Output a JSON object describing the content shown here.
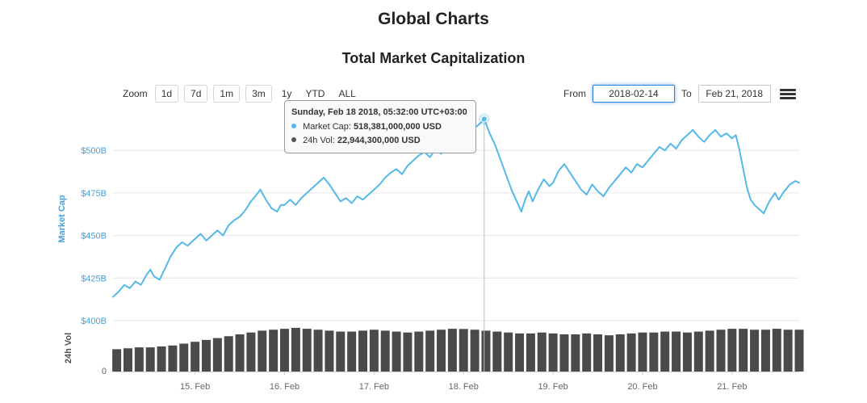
{
  "page": {
    "title": "Global Charts"
  },
  "toolbar": {
    "zoom_label": "Zoom",
    "zoom_buttons": [
      "1d",
      "7d",
      "1m",
      "3m",
      "1y",
      "YTD",
      "ALL"
    ],
    "from_label": "From",
    "from_value": "2018-02-14",
    "to_label": "To",
    "to_value": "Feb 21, 2018"
  },
  "tooltip": {
    "header": "Sunday, Feb 18 2018, 05:32:00 UTC+03:00",
    "rows": [
      {
        "label": "Market Cap:",
        "value": "518,381,000,000 USD",
        "color": "#54b9e8"
      },
      {
        "label": "24h Vol:",
        "value": "22,944,300,000 USD",
        "color": "#555555"
      }
    ]
  },
  "chart_data": {
    "type": "line",
    "title": "Total Market Capitalization",
    "x_unit": "hours since 2018-02-14 00:00",
    "x_range": [
      2,
      186
    ],
    "x_ticks": [
      {
        "t": 24,
        "label": "15. Feb"
      },
      {
        "t": 48,
        "label": "16. Feb"
      },
      {
        "t": 72,
        "label": "17. Feb"
      },
      {
        "t": 96,
        "label": "18. Feb"
      },
      {
        "t": 120,
        "label": "19. Feb"
      },
      {
        "t": 144,
        "label": "20. Feb"
      },
      {
        "t": 168,
        "label": "21. Feb"
      }
    ],
    "crosshair": {
      "t": 101.53,
      "value": 518.381
    },
    "market_cap": {
      "name": "Market Cap",
      "axis_title": "Market Cap",
      "unit": "billion USD",
      "color": "#54b9e8",
      "ylim": [
        395,
        525
      ],
      "axis_ticks": [
        {
          "v": 400,
          "label": "$400B"
        },
        {
          "v": 425,
          "label": "$425B"
        },
        {
          "v": 450,
          "label": "$450B"
        },
        {
          "v": 475,
          "label": "$475B"
        },
        {
          "v": 500,
          "label": "$500B"
        }
      ],
      "points": [
        [
          2,
          414
        ],
        [
          3.5,
          417
        ],
        [
          5,
          421
        ],
        [
          6.5,
          419
        ],
        [
          8,
          423
        ],
        [
          9.5,
          421
        ],
        [
          11,
          427
        ],
        [
          12,
          430
        ],
        [
          13,
          426
        ],
        [
          14.5,
          424
        ],
        [
          16,
          431
        ],
        [
          17.5,
          438
        ],
        [
          19,
          443
        ],
        [
          20.5,
          446
        ],
        [
          22,
          444
        ],
        [
          24,
          448
        ],
        [
          25.5,
          451
        ],
        [
          27,
          447
        ],
        [
          28.5,
          450
        ],
        [
          30,
          453
        ],
        [
          31.5,
          450
        ],
        [
          33,
          456
        ],
        [
          34.5,
          459
        ],
        [
          36,
          461
        ],
        [
          37.5,
          465
        ],
        [
          39,
          470
        ],
        [
          40.5,
          474
        ],
        [
          41.5,
          477
        ],
        [
          43,
          471
        ],
        [
          44.5,
          466
        ],
        [
          46,
          464
        ],
        [
          47,
          468
        ],
        [
          48,
          468
        ],
        [
          49.5,
          471
        ],
        [
          51,
          468
        ],
        [
          52.5,
          472
        ],
        [
          54,
          475
        ],
        [
          55.5,
          478
        ],
        [
          57,
          481
        ],
        [
          58.5,
          484
        ],
        [
          60,
          480
        ],
        [
          61.5,
          475
        ],
        [
          63,
          470
        ],
        [
          64.5,
          472
        ],
        [
          66,
          469
        ],
        [
          67.5,
          473
        ],
        [
          69,
          471
        ],
        [
          70.5,
          474
        ],
        [
          72,
          477
        ],
        [
          73.5,
          480
        ],
        [
          75,
          484
        ],
        [
          76.5,
          487
        ],
        [
          78,
          489
        ],
        [
          79.5,
          486
        ],
        [
          81,
          491
        ],
        [
          82.5,
          494
        ],
        [
          84,
          497
        ],
        [
          85.5,
          499
        ],
        [
          87,
          496
        ],
        [
          88.5,
          501
        ],
        [
          90,
          498
        ],
        [
          91.5,
          503
        ],
        [
          93,
          506
        ],
        [
          94.5,
          502
        ],
        [
          96,
          506
        ],
        [
          97.5,
          510
        ],
        [
          99,
          513
        ],
        [
          100.5,
          516
        ],
        [
          101.53,
          518.381
        ],
        [
          103,
          510
        ],
        [
          104.5,
          503
        ],
        [
          106,
          494
        ],
        [
          107.5,
          485
        ],
        [
          109,
          476
        ],
        [
          110.5,
          469
        ],
        [
          111.5,
          464
        ],
        [
          112.5,
          471
        ],
        [
          113.5,
          476
        ],
        [
          114.5,
          470
        ],
        [
          116,
          477
        ],
        [
          117.5,
          483
        ],
        [
          119,
          479
        ],
        [
          120,
          481
        ],
        [
          121.5,
          488
        ],
        [
          123,
          492
        ],
        [
          124.5,
          487
        ],
        [
          126,
          482
        ],
        [
          127.5,
          477
        ],
        [
          129,
          474
        ],
        [
          130.5,
          480
        ],
        [
          132,
          476
        ],
        [
          133.5,
          473
        ],
        [
          135,
          478
        ],
        [
          136.5,
          482
        ],
        [
          138,
          486
        ],
        [
          139.5,
          490
        ],
        [
          141,
          487
        ],
        [
          142.5,
          492
        ],
        [
          144,
          490
        ],
        [
          145.5,
          494
        ],
        [
          147,
          498
        ],
        [
          148.5,
          502
        ],
        [
          150,
          500
        ],
        [
          151.5,
          504
        ],
        [
          153,
          501
        ],
        [
          154.5,
          506
        ],
        [
          156,
          509
        ],
        [
          157.5,
          512
        ],
        [
          159,
          508
        ],
        [
          160.5,
          505
        ],
        [
          162,
          509
        ],
        [
          163.5,
          512
        ],
        [
          165,
          508
        ],
        [
          166.5,
          510
        ],
        [
          168,
          507
        ],
        [
          169,
          509
        ],
        [
          170,
          500
        ],
        [
          171,
          489
        ],
        [
          172,
          478
        ],
        [
          173,
          471
        ],
        [
          174,
          468
        ],
        [
          175.5,
          465
        ],
        [
          176.5,
          463
        ],
        [
          178,
          470
        ],
        [
          179.5,
          475
        ],
        [
          180.5,
          471
        ],
        [
          182,
          476
        ],
        [
          183.5,
          480
        ],
        [
          185,
          482
        ],
        [
          186,
          481
        ]
      ]
    },
    "volume": {
      "name": "24h Vol",
      "axis_title": "24h Vol",
      "unit": "billion USD",
      "color": "#4a4a4a",
      "ylim": [
        0,
        25
      ],
      "axis_ticks": [
        {
          "v": 0,
          "label": "0"
        }
      ],
      "t_start": 3,
      "t_step": 3,
      "values": [
        12,
        12.5,
        13,
        13,
        13.5,
        14,
        15,
        16,
        17,
        18,
        19,
        20,
        21,
        22,
        22.5,
        23,
        23.5,
        23,
        22.5,
        22,
        21.5,
        21.5,
        22,
        22.5,
        22,
        21.5,
        21,
        21.5,
        22,
        22.5,
        23,
        22.9,
        22.5,
        22,
        21.5,
        21,
        20.5,
        20.5,
        21,
        20.5,
        20,
        20,
        20.5,
        20,
        19.5,
        20,
        20.5,
        21,
        21,
        21.5,
        21.5,
        21,
        21.5,
        22,
        22.5,
        23,
        23,
        22.5,
        22.5,
        23,
        22.5,
        22.5
      ]
    }
  }
}
